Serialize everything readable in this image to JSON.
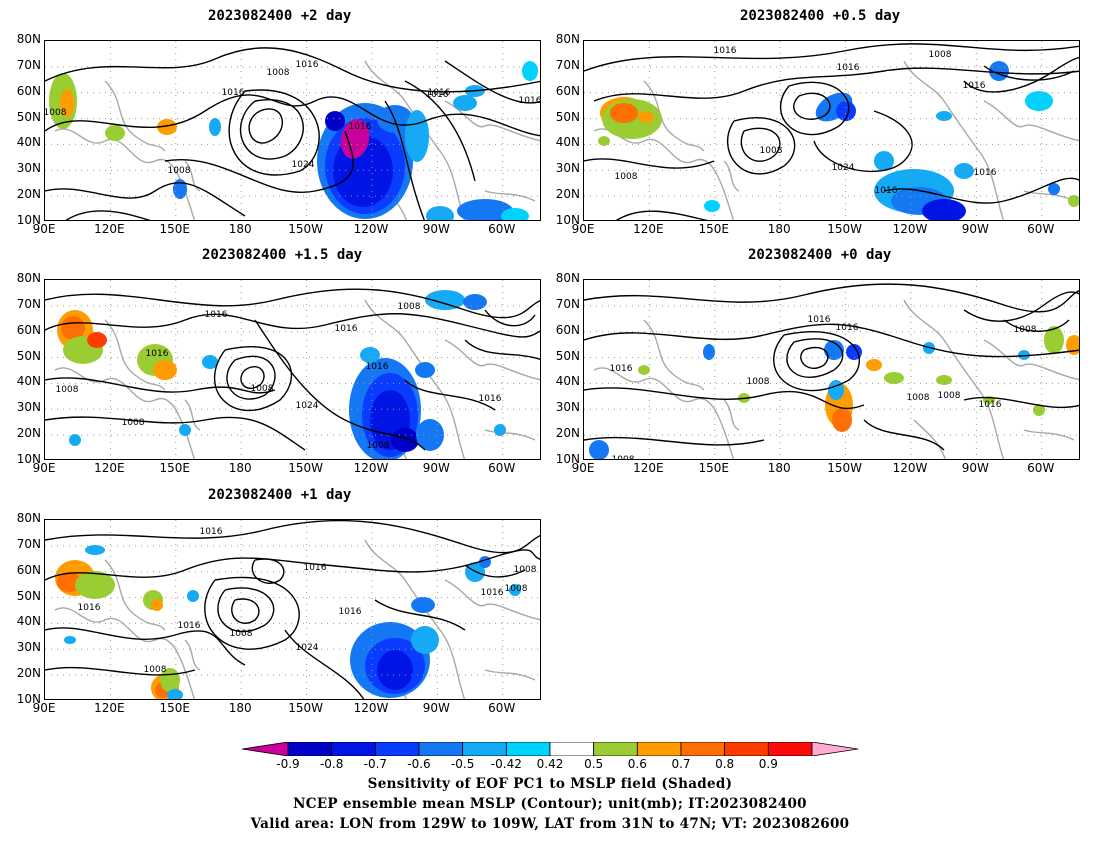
{
  "panels": [
    {
      "id": "p1",
      "title": "2023082400 +2 day"
    },
    {
      "id": "p2",
      "title": "2023082400 +0.5 day"
    },
    {
      "id": "p3",
      "title": "2023082400 +1.5 day"
    },
    {
      "id": "p4",
      "title": "2023082400 +0 day"
    },
    {
      "id": "p5",
      "title": "2023082400 +1 day"
    }
  ],
  "axes": {
    "lat_ticks": [
      "80N",
      "70N",
      "60N",
      "50N",
      "40N",
      "30N",
      "20N",
      "10N"
    ],
    "lon_ticks": [
      "90E",
      "120E",
      "150E",
      "180",
      "150W",
      "120W",
      "90W",
      "60W"
    ]
  },
  "contour_labels": {
    "p1": [
      "1016",
      "1008",
      "1016",
      "1008",
      "1016",
      "1016",
      "1024",
      "1008",
      "1016",
      "1016"
    ],
    "p2": [
      "1016",
      "1008",
      "1016",
      "1016",
      "1008",
      "1024",
      "1008",
      "1016",
      "1016"
    ],
    "p3": [
      "1008",
      "1016",
      "1016",
      "1008",
      "1016",
      "1008",
      "1024",
      "1016",
      "1008",
      "1016",
      "1008"
    ],
    "p4": [
      "1016",
      "1016",
      "1008",
      "1016",
      "1008",
      "1008",
      "1008",
      "1016",
      "1008"
    ],
    "p5": [
      "1016",
      "1016",
      "1008",
      "1016",
      "1016",
      "1008",
      "1024",
      "1016",
      "1008",
      "1016",
      "1008"
    ]
  },
  "colorbar": {
    "labels": [
      "-0.9",
      "-0.8",
      "-0.7",
      "-0.6",
      "-0.5",
      "-0.42",
      "0.42",
      "0.5",
      "0.6",
      "0.7",
      "0.8",
      "0.9"
    ],
    "colors": [
      "#c8009c",
      "#0000c8",
      "#0014e6",
      "#0a3cff",
      "#1478f5",
      "#14aaf5",
      "#00d2ff",
      "#ffffff",
      "#9acd32",
      "#ff9c00",
      "#ff6e00",
      "#ff3c00",
      "#ff0a0a",
      "#ffaad2"
    ]
  },
  "caption": {
    "line1": "Sensitivity of EOF PC1 to MSLP field (Shaded)",
    "line2": "NCEP ensemble mean MSLP (Contour); unit(mb); IT:2023082400",
    "line3": "Valid area: LON from 129W to 109W, LAT from 31N to 47N; VT: 2023082600"
  }
}
